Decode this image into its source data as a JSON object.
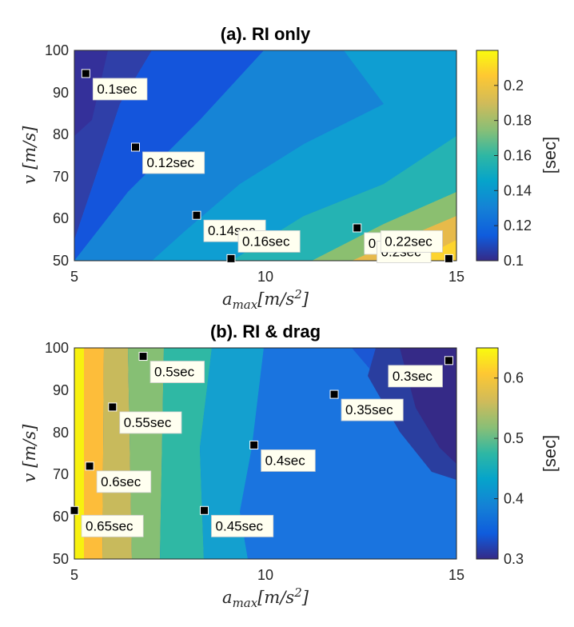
{
  "chart_data": [
    {
      "type": "heatmap",
      "title": "(a). RI only",
      "xlabel": "a_max[m/s^2]",
      "ylabel": "v [m/s]",
      "xlim": [
        5,
        15
      ],
      "ylim": [
        50,
        100
      ],
      "xticks": [
        "5",
        "10",
        "15"
      ],
      "yticks": [
        "50",
        "60",
        "70",
        "80",
        "90",
        "100"
      ],
      "colorbar": {
        "label": "[sec]",
        "range": [
          0.1,
          0.22
        ],
        "ticks": [
          "0.1",
          "0.12",
          "0.14",
          "0.16",
          "0.18",
          "0.2"
        ]
      },
      "colormap": "parula",
      "markers": [
        {
          "x": 5.3,
          "y": 94.5,
          "label": "0.1sec"
        },
        {
          "x": 6.6,
          "y": 77,
          "label": "0.12sec"
        },
        {
          "x": 8.2,
          "y": 60.8,
          "label": "0.14sec"
        },
        {
          "x": 9.1,
          "y": 50.5,
          "label": "0.16sec"
        },
        {
          "x": 12.4,
          "y": 57.8,
          "label": "0.18sec"
        },
        {
          "x": 14.5,
          "y": 55.8,
          "label": "0.2sec"
        },
        {
          "x": 14.8,
          "y": 50.5,
          "label": "0.22sec"
        }
      ]
    },
    {
      "type": "heatmap",
      "title": "(b). RI & drag",
      "xlabel": "a_max[m/s^2]",
      "ylabel": "v [m/s]",
      "xlim": [
        5,
        15
      ],
      "ylim": [
        50,
        100
      ],
      "xticks": [
        "5",
        "10",
        "15"
      ],
      "yticks": [
        "50",
        "60",
        "70",
        "80",
        "90",
        "100"
      ],
      "colorbar": {
        "label": "[sec]",
        "range": [
          0.3,
          0.65
        ],
        "ticks": [
          "0.3",
          "0.4",
          "0.5",
          "0.6"
        ]
      },
      "colormap": "parula",
      "markers": [
        {
          "x": 6.8,
          "y": 98,
          "label": "0.5sec"
        },
        {
          "x": 14.8,
          "y": 97,
          "label": "0.3sec"
        },
        {
          "x": 6.0,
          "y": 86,
          "label": "0.55sec"
        },
        {
          "x": 11.8,
          "y": 89,
          "label": "0.35sec"
        },
        {
          "x": 9.7,
          "y": 77,
          "label": "0.4sec"
        },
        {
          "x": 5.4,
          "y": 72,
          "label": "0.6sec"
        },
        {
          "x": 5.0,
          "y": 61.5,
          "label": "0.65sec"
        },
        {
          "x": 8.4,
          "y": 61.5,
          "label": "0.45sec"
        }
      ]
    }
  ]
}
